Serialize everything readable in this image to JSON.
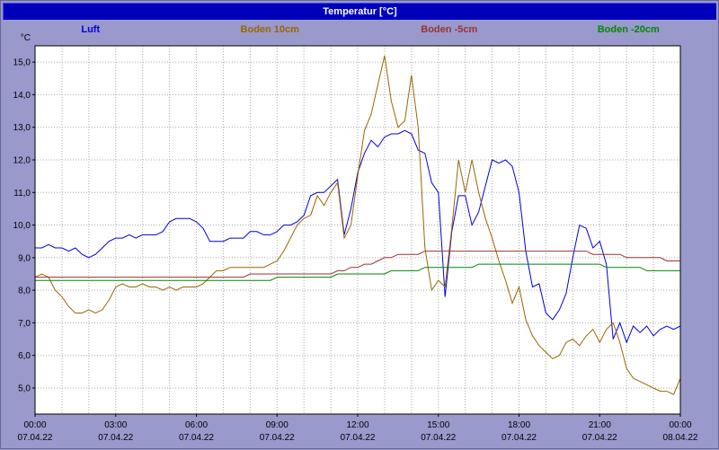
{
  "colors": {
    "frame": "#9999CC",
    "titlebar": "#0000BB",
    "plot_background": "#FFFFFF",
    "grid": "#AAAAAA",
    "axis": "#000000"
  },
  "chart_data": {
    "type": "line",
    "title": "Temperatur [°C]",
    "y_axis_unit": "°C",
    "y_domain": [
      4.2,
      15.5
    ],
    "x_domain_hours": [
      0,
      24
    ],
    "grid": {
      "x_minor_step_hours": 1,
      "y_step": 1,
      "style": "dotted"
    },
    "legend_position": "top",
    "y_ticks": [
      {
        "value": 5,
        "label": "5,0"
      },
      {
        "value": 6,
        "label": "6,0"
      },
      {
        "value": 7,
        "label": "7,0"
      },
      {
        "value": 8,
        "label": "8,0"
      },
      {
        "value": 9,
        "label": "9,0"
      },
      {
        "value": 10,
        "label": "10,0"
      },
      {
        "value": 11,
        "label": "11,0"
      },
      {
        "value": 12,
        "label": "12,0"
      },
      {
        "value": 13,
        "label": "13,0"
      },
      {
        "value": 14,
        "label": "14,0"
      },
      {
        "value": 15,
        "label": "15,0"
      }
    ],
    "x_ticks": [
      {
        "hour": 0,
        "time": "00:00",
        "date": "07.04.22"
      },
      {
        "hour": 3,
        "time": "03:00",
        "date": "07.04.22"
      },
      {
        "hour": 6,
        "time": "06:00",
        "date": "07.04.22"
      },
      {
        "hour": 9,
        "time": "09:00",
        "date": "07.04.22"
      },
      {
        "hour": 12,
        "time": "12:00",
        "date": "07.04.22"
      },
      {
        "hour": 15,
        "time": "15:00",
        "date": "07.04.22"
      },
      {
        "hour": 18,
        "time": "18:00",
        "date": "07.04.22"
      },
      {
        "hour": 21,
        "time": "21:00",
        "date": "07.04.22"
      },
      {
        "hour": 24,
        "time": "00:00",
        "date": "08.04.22"
      }
    ],
    "x_start_hour": 0,
    "x_step_hours": 0.25,
    "series": [
      {
        "name": "Luft",
        "color": "#0000DD",
        "values": [
          9.3,
          9.3,
          9.4,
          9.3,
          9.3,
          9.2,
          9.3,
          9.1,
          9.0,
          9.1,
          9.3,
          9.5,
          9.6,
          9.6,
          9.7,
          9.6,
          9.7,
          9.7,
          9.7,
          9.8,
          10.1,
          10.2,
          10.2,
          10.2,
          10.1,
          9.9,
          9.5,
          9.5,
          9.5,
          9.6,
          9.6,
          9.6,
          9.8,
          9.8,
          9.7,
          9.7,
          9.8,
          10.0,
          10.0,
          10.1,
          10.3,
          10.9,
          11.0,
          11.0,
          11.2,
          11.4,
          9.7,
          10.5,
          11.6,
          12.2,
          12.6,
          12.4,
          12.7,
          12.8,
          12.8,
          12.9,
          12.8,
          12.3,
          12.2,
          11.3,
          11.0,
          7.8,
          9.8,
          10.9,
          10.9,
          10.0,
          10.4,
          11.2,
          12.0,
          11.9,
          12.0,
          11.8,
          11.0,
          9.2,
          8.1,
          8.2,
          7.3,
          7.1,
          7.4,
          7.9,
          9.0,
          10.0,
          9.9,
          9.3,
          9.5,
          8.8,
          6.5,
          7.0,
          6.4,
          6.9,
          6.7,
          6.9,
          6.6,
          6.8,
          6.9,
          6.8,
          6.9
        ]
      },
      {
        "name": "Boden 10cm",
        "color": "#996600",
        "values": [
          8.4,
          8.5,
          8.4,
          8.0,
          7.8,
          7.5,
          7.3,
          7.3,
          7.4,
          7.3,
          7.4,
          7.7,
          8.1,
          8.2,
          8.1,
          8.1,
          8.2,
          8.1,
          8.1,
          8.0,
          8.1,
          8.0,
          8.1,
          8.1,
          8.1,
          8.2,
          8.4,
          8.6,
          8.6,
          8.7,
          8.7,
          8.7,
          8.7,
          8.7,
          8.7,
          8.8,
          8.9,
          9.2,
          9.6,
          10.0,
          10.2,
          10.3,
          10.9,
          10.6,
          11.0,
          11.3,
          9.6,
          10.0,
          11.5,
          12.9,
          13.4,
          14.3,
          15.2,
          13.8,
          13.0,
          13.2,
          14.6,
          13.0,
          9.3,
          8.0,
          8.3,
          8.1,
          9.9,
          12.0,
          11.0,
          12.0,
          11.0,
          10.2,
          9.6,
          8.9,
          8.3,
          7.6,
          8.1,
          7.1,
          6.6,
          6.3,
          6.1,
          5.9,
          6.0,
          6.4,
          6.5,
          6.3,
          6.6,
          6.8,
          6.4,
          6.8,
          7.0,
          6.4,
          5.6,
          5.3,
          5.2,
          5.1,
          5.0,
          4.9,
          4.9,
          4.8,
          5.3
        ]
      },
      {
        "name": "Boden -5cm",
        "color": "#993333",
        "values": [
          8.4,
          8.4,
          8.4,
          8.4,
          8.4,
          8.4,
          8.4,
          8.4,
          8.4,
          8.4,
          8.4,
          8.4,
          8.4,
          8.4,
          8.4,
          8.4,
          8.4,
          8.4,
          8.4,
          8.4,
          8.4,
          8.4,
          8.4,
          8.4,
          8.4,
          8.4,
          8.4,
          8.4,
          8.4,
          8.4,
          8.4,
          8.4,
          8.5,
          8.5,
          8.5,
          8.5,
          8.5,
          8.5,
          8.5,
          8.5,
          8.5,
          8.5,
          8.5,
          8.5,
          8.5,
          8.6,
          8.6,
          8.7,
          8.7,
          8.8,
          8.8,
          8.9,
          9.0,
          9.0,
          9.1,
          9.1,
          9.1,
          9.1,
          9.2,
          9.2,
          9.2,
          9.2,
          9.2,
          9.2,
          9.2,
          9.2,
          9.2,
          9.2,
          9.2,
          9.2,
          9.2,
          9.2,
          9.2,
          9.2,
          9.2,
          9.2,
          9.2,
          9.2,
          9.2,
          9.2,
          9.2,
          9.2,
          9.2,
          9.1,
          9.1,
          9.1,
          9.1,
          9.1,
          9.0,
          9.0,
          9.0,
          9.0,
          9.0,
          9.0,
          8.9,
          8.9,
          8.9
        ]
      },
      {
        "name": "Boden -20cm",
        "color": "#008800",
        "values": [
          8.3,
          8.3,
          8.3,
          8.3,
          8.3,
          8.3,
          8.3,
          8.3,
          8.3,
          8.3,
          8.3,
          8.3,
          8.3,
          8.3,
          8.3,
          8.3,
          8.3,
          8.3,
          8.3,
          8.3,
          8.3,
          8.3,
          8.3,
          8.3,
          8.3,
          8.3,
          8.3,
          8.3,
          8.3,
          8.3,
          8.3,
          8.3,
          8.3,
          8.3,
          8.3,
          8.3,
          8.4,
          8.4,
          8.4,
          8.4,
          8.4,
          8.4,
          8.4,
          8.4,
          8.4,
          8.5,
          8.5,
          8.5,
          8.5,
          8.5,
          8.5,
          8.5,
          8.5,
          8.6,
          8.6,
          8.6,
          8.6,
          8.6,
          8.7,
          8.7,
          8.7,
          8.7,
          8.7,
          8.7,
          8.7,
          8.7,
          8.8,
          8.8,
          8.8,
          8.8,
          8.8,
          8.8,
          8.8,
          8.8,
          8.8,
          8.8,
          8.8,
          8.8,
          8.8,
          8.8,
          8.8,
          8.8,
          8.8,
          8.8,
          8.8,
          8.7,
          8.7,
          8.7,
          8.7,
          8.7,
          8.7,
          8.6,
          8.6,
          8.6,
          8.6,
          8.6,
          8.6
        ]
      }
    ]
  }
}
